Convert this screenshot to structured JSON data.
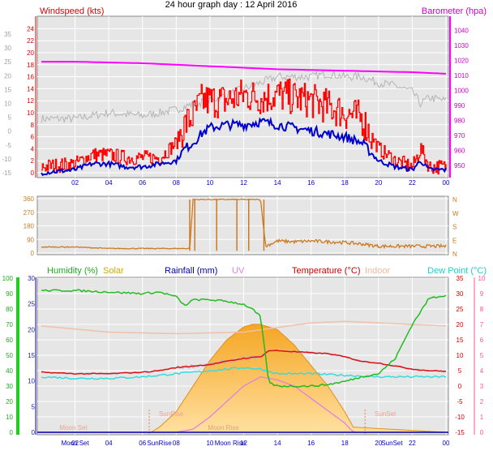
{
  "title": "24 hour graph day : 12 April 2016",
  "colors": {
    "wind": "#ff0000",
    "wind_avg": "#0000cc",
    "gust_grey": "#b4b4b4",
    "baro": "#ff00ff",
    "dir": "#cc7a22",
    "humidity": "#22bb22",
    "solar": "#f5b23c",
    "rain": "#0000aa",
    "uv": "#e080e0",
    "temp": "#dd1111",
    "indoor": "#f0c0a8",
    "dew": "#33dddd",
    "gray_axis": "#a0a0a0",
    "green_axis": "#22cc22",
    "pink_axis": "#ff5599"
  },
  "chart_data": [
    {
      "type": "line",
      "title": "Windspeed (kts)",
      "left_label": "Windspeed (kts)",
      "right_label": "Barometer (hpa)",
      "x_ticks": [
        "02",
        "04",
        "06",
        "08",
        "10",
        "12",
        "14",
        "16",
        "18",
        "20",
        "22",
        "00"
      ],
      "left_outer_ticks": [
        "35",
        "30",
        "25",
        "20",
        "15",
        "10",
        "5",
        "0",
        "-5",
        "-10",
        "-15"
      ],
      "left_inner_ticks": [
        "24",
        "22",
        "20",
        "18",
        "16",
        "14",
        "12",
        "10",
        "8",
        "6",
        "4",
        "2",
        "0"
      ],
      "right_ticks": [
        "1040",
        "1030",
        "1020",
        "1010",
        "1000",
        "990",
        "980",
        "970",
        "960",
        "950"
      ],
      "ylim_kts": [
        0,
        25
      ],
      "ylim_hpa": [
        945,
        1045
      ],
      "series": [
        {
          "name": "Windspeed",
          "hours": [
            0,
            2,
            3,
            4,
            5,
            6,
            7,
            8,
            8.5,
            9,
            9.5,
            10,
            11,
            12,
            13,
            14,
            15,
            16,
            17,
            18,
            19,
            20,
            21,
            22,
            22.5,
            23,
            24
          ],
          "values": [
            1,
            1.5,
            3,
            3,
            2.5,
            2.5,
            2.5,
            5,
            8,
            9.5,
            12,
            12,
            12,
            13,
            12.5,
            13,
            12.5,
            12,
            11,
            10,
            9,
            4,
            2,
            1,
            4,
            1,
            1
          ]
        },
        {
          "name": "Average",
          "hours": [
            0,
            2,
            3,
            4,
            5,
            6,
            7,
            8,
            8.5,
            9,
            9.5,
            10,
            11,
            12,
            13,
            14,
            15,
            16,
            17,
            18,
            19,
            20,
            21,
            22,
            22.5,
            23,
            24
          ],
          "values": [
            0,
            0.5,
            1.5,
            1.5,
            1,
            1,
            1.5,
            2,
            4,
            5,
            6.5,
            7.5,
            8,
            8,
            8.5,
            8,
            7.5,
            7,
            6.5,
            6,
            5,
            2,
            1,
            0.5,
            2,
            0.5,
            0.5
          ]
        },
        {
          "name": "Gust",
          "hours": [
            0,
            2,
            4,
            6,
            8,
            9,
            10,
            11,
            12,
            13,
            14,
            15,
            16,
            17,
            18,
            19,
            20,
            21,
            22,
            22.5,
            23,
            24
          ],
          "values": [
            9,
            9,
            10,
            9.5,
            10.5,
            11.5,
            12,
            13,
            14,
            15,
            16,
            16,
            16,
            16.5,
            16,
            16,
            15,
            14.5,
            13.5,
            11.5,
            12.5,
            12
          ]
        },
        {
          "name": "Barometer",
          "hours": [
            0,
            2,
            4,
            6,
            8,
            10,
            12,
            14,
            16,
            18,
            20,
            22,
            24
          ],
          "values": [
            1019,
            1019,
            1018.5,
            1018,
            1017,
            1016,
            1015,
            1014,
            1013.5,
            1013,
            1012.5,
            1012,
            1011
          ]
        }
      ]
    },
    {
      "type": "line",
      "title": "Wind direction",
      "left_ticks": [
        "360",
        "270",
        "180",
        "90",
        "0"
      ],
      "right_ticks": [
        "N",
        "W",
        "S",
        "E",
        "N"
      ],
      "ylim": [
        0,
        360
      ],
      "series": [
        {
          "name": "Direction",
          "hours": [
            0,
            2,
            4,
            6,
            7,
            8,
            8.8,
            9,
            9.5,
            10,
            11,
            12,
            12.5,
            13,
            13.3,
            14,
            15,
            16,
            17,
            18,
            19,
            20,
            22,
            24
          ],
          "values": [
            40,
            40,
            30,
            30,
            30,
            30,
            30,
            355,
            355,
            355,
            355,
            355,
            355,
            355,
            45,
            80,
            75,
            80,
            75,
            70,
            60,
            45,
            45,
            45
          ]
        }
      ]
    },
    {
      "type": "line",
      "title": "Temperature",
      "labels": {
        "humidity": "Humidity (%)",
        "solar": "Solar",
        "rain": "Rainfall (mm)",
        "uv": "UV",
        "temp": "Temperature (°C)",
        "indoor": "Indoor",
        "dew": "Dew Point (°C)"
      },
      "left1_ticks": [
        "100",
        "90",
        "80",
        "70",
        "60",
        "50",
        "40",
        "30",
        "20",
        "10",
        "0"
      ],
      "left2_ticks": [
        "30",
        "25",
        "20",
        "15",
        "10",
        "5",
        "0"
      ],
      "right1_ticks": [
        "35",
        "30",
        "25",
        "20",
        "15",
        "10",
        "5",
        "0",
        "-5",
        "-10",
        "-15"
      ],
      "right2_ticks": [
        "10",
        "9",
        "8",
        "7",
        "6",
        "5",
        "4",
        "3",
        "2",
        "1",
        "0"
      ],
      "ylim_humidity": [
        0,
        100
      ],
      "ylim_temp": [
        -15,
        35
      ],
      "annotations": [
        "Moon Set",
        "SunRise",
        "Moon Rise",
        "SunSet"
      ],
      "x_ticks": [
        "02",
        "04",
        "06",
        "08",
        "10",
        "12",
        "14",
        "16",
        "18",
        "20",
        "22",
        "00"
      ],
      "series": [
        {
          "name": "Humidity",
          "hours": [
            0,
            2,
            4,
            6,
            7,
            8,
            8.5,
            9,
            10,
            11,
            12,
            12.5,
            13,
            13.5,
            14,
            16,
            17,
            18,
            19,
            20,
            21,
            22,
            23,
            24
          ],
          "values": [
            92,
            92,
            91,
            90,
            91,
            88,
            82,
            86,
            86,
            85,
            83,
            80,
            75,
            32,
            30,
            30,
            31,
            33,
            36,
            38,
            48,
            70,
            87,
            89
          ]
        },
        {
          "name": "Temperature",
          "hours": [
            0,
            2,
            4,
            6,
            7,
            8,
            9,
            10,
            11,
            12,
            13,
            13.5,
            14,
            16,
            17,
            18,
            19,
            20,
            21,
            22,
            23,
            24
          ],
          "values": [
            4.5,
            4,
            4,
            4.5,
            5,
            6,
            6.5,
            7,
            8,
            9,
            9.5,
            11.5,
            11.5,
            10.8,
            10.5,
            9.5,
            8,
            7.5,
            6.5,
            5.5,
            5,
            4.8
          ]
        },
        {
          "name": "Dew Point",
          "hours": [
            0,
            2,
            4,
            6,
            8,
            10,
            12,
            13,
            14,
            16,
            18,
            20,
            22,
            24
          ],
          "values": [
            3,
            2.5,
            2.5,
            3,
            4,
            5,
            6,
            5.5,
            4,
            4,
            3.5,
            3,
            3,
            3
          ]
        },
        {
          "name": "Indoor",
          "hours": [
            0,
            4,
            8,
            12,
            16,
            18,
            20,
            24
          ],
          "values": [
            19.5,
            17.5,
            17,
            17.5,
            20.5,
            21,
            20.5,
            19.5
          ]
        },
        {
          "name": "UV",
          "hours": [
            0,
            8,
            9,
            10,
            11,
            12,
            13,
            14,
            15,
            16,
            17,
            18,
            18.5,
            24
          ],
          "values": [
            -15,
            -15,
            -14,
            -10,
            -5,
            0,
            3,
            2,
            0,
            -4,
            -8,
            -12,
            -15,
            -15
          ]
        },
        {
          "name": "Solar",
          "hours": [
            0,
            6.5,
            7,
            8,
            9,
            10,
            11,
            12,
            12.5,
            13,
            14,
            15,
            16,
            17,
            18,
            18.5,
            24
          ],
          "values": [
            0,
            0,
            1,
            4,
            9,
            14,
            18,
            20.5,
            21,
            21,
            20,
            17,
            13,
            9,
            4,
            1,
            0
          ]
        }
      ]
    }
  ]
}
